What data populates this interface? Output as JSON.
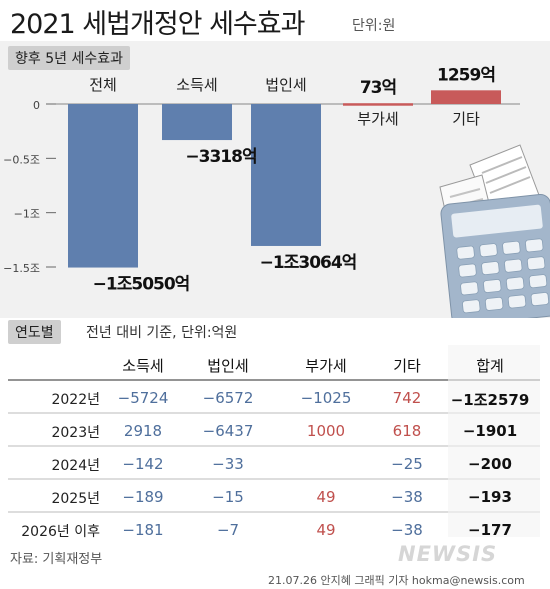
{
  "header": {
    "title": "2021 세법개정안 세수효과",
    "unit": "단위:원"
  },
  "top_section": {
    "label": "향후 5년 세수효과"
  },
  "bottom_section": {
    "label": "연도별",
    "note": "전년 대비 기준, 단위:억원"
  },
  "chart_data": [
    {
      "type": "bar",
      "title": "향후 5년 세수효과",
      "categories": [
        "전체",
        "소득세",
        "법인세",
        "부가세",
        "기타"
      ],
      "values": [
        -15050,
        -3318,
        -13064,
        73,
        1259
      ],
      "value_labels": [
        "−1조5050억",
        "−3318억",
        "−1조3064억",
        "73억",
        "1259억"
      ],
      "y_ticks": [
        {
          "value": 0,
          "label": "0"
        },
        {
          "value": -5000,
          "label": "−0.5조"
        },
        {
          "value": -10000,
          "label": "−1조"
        },
        {
          "value": -15000,
          "label": "−1.5조"
        }
      ],
      "ylim": [
        -15500,
        1800
      ],
      "colors": {
        "negative": "#5f7fae",
        "positive": "#c85a5a"
      }
    },
    {
      "type": "table",
      "columns": [
        "",
        "소득세",
        "법인세",
        "부가세",
        "기타",
        "합계"
      ],
      "rows": [
        {
          "year": "2022년",
          "cells": [
            {
              "text": "−5724",
              "tone": "neg"
            },
            {
              "text": "−6572",
              "tone": "neg"
            },
            {
              "text": "−1025",
              "tone": "neg"
            },
            {
              "text": "742",
              "tone": "pos"
            },
            {
              "text": "−1조2579",
              "tone": "total"
            }
          ]
        },
        {
          "year": "2023년",
          "cells": [
            {
              "text": "2918",
              "tone": "neg"
            },
            {
              "text": "−6437",
              "tone": "neg"
            },
            {
              "text": "1000",
              "tone": "pos"
            },
            {
              "text": "618",
              "tone": "pos"
            },
            {
              "text": "−1901",
              "tone": "total"
            }
          ]
        },
        {
          "year": "2024년",
          "cells": [
            {
              "text": "−142",
              "tone": "neg"
            },
            {
              "text": "−33",
              "tone": "neg"
            },
            {
              "text": "",
              "tone": "neg"
            },
            {
              "text": "−25",
              "tone": "neg"
            },
            {
              "text": "−200",
              "tone": "total"
            }
          ]
        },
        {
          "year": "2025년",
          "cells": [
            {
              "text": "−189",
              "tone": "neg"
            },
            {
              "text": "−15",
              "tone": "neg"
            },
            {
              "text": "49",
              "tone": "pos"
            },
            {
              "text": "−38",
              "tone": "neg"
            },
            {
              "text": "−193",
              "tone": "total"
            }
          ]
        },
        {
          "year": "2026년 이후",
          "cells": [
            {
              "text": "−181",
              "tone": "neg"
            },
            {
              "text": "−7",
              "tone": "neg"
            },
            {
              "text": "49",
              "tone": "pos"
            },
            {
              "text": "−38",
              "tone": "neg"
            },
            {
              "text": "−177",
              "tone": "total"
            }
          ]
        }
      ]
    }
  ],
  "footer": {
    "source": "자료: 기획재정부",
    "credit": "21.07.26 안지혜 그래픽 기자 hokma@newsis.com",
    "watermark": "NEWSIS"
  },
  "illustration": {
    "name": "calculator-receipts-icon"
  }
}
